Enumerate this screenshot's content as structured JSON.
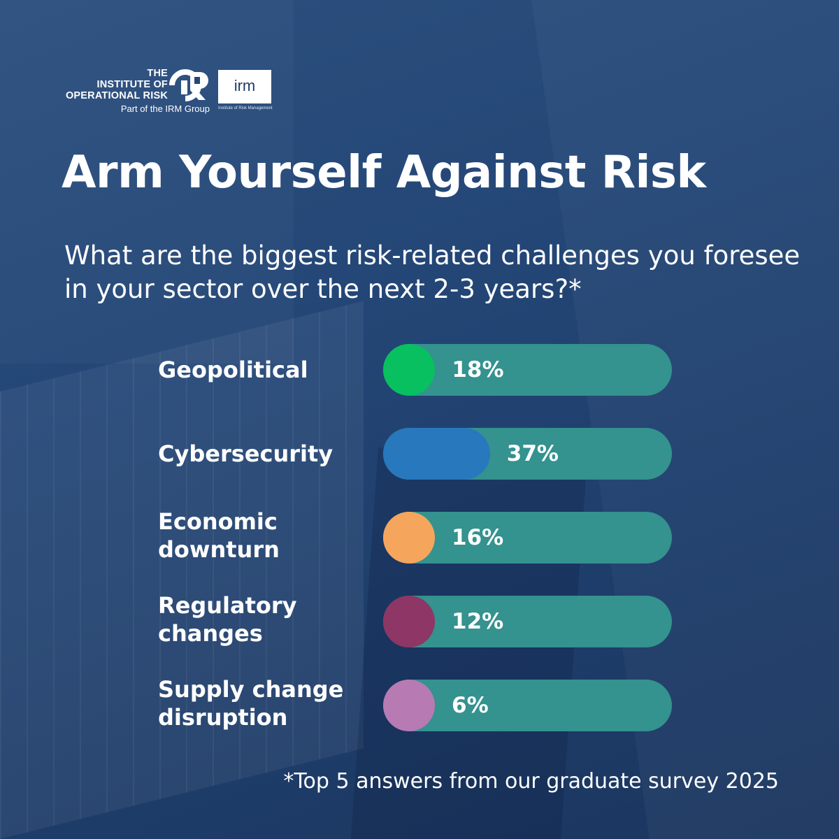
{
  "logos": {
    "ior_lines": [
      "THE",
      "INSTITUTE OF",
      "OPERATIONAL RISK"
    ],
    "ior_subline": "Part of the IRM Group",
    "irm_mark": "irm",
    "irm_caption": "Institute of Risk Management"
  },
  "title": "Arm Yourself Against Risk",
  "question": "What are the biggest risk-related challenges you foresee in your sector over the next 2-3 years?*",
  "footnote": "*Top 5 answers from our graduate survey 2025",
  "colors": {
    "track": "#34928f",
    "background": "#244777"
  },
  "chart_data": {
    "type": "bar",
    "orientation": "horizontal",
    "categories": [
      "Geopolitical",
      "Cybersecurity",
      "Economic downturn",
      "Regulatory changes",
      "Supply change disruption"
    ],
    "category_lines": [
      [
        "Geopolitical"
      ],
      [
        "Cybersecurity"
      ],
      [
        "Economic",
        "downturn"
      ],
      [
        "Regulatory",
        "changes"
      ],
      [
        "Supply change",
        "disruption"
      ]
    ],
    "values": [
      18,
      37,
      16,
      12,
      6
    ],
    "value_labels": [
      "18%",
      "37%",
      "16%",
      "12%",
      "6%"
    ],
    "bar_colors": [
      "#08c05f",
      "#2878bd",
      "#f5a65c",
      "#8e3665",
      "#b87ab3"
    ],
    "xlim": [
      0,
      100
    ],
    "unit": "%"
  }
}
